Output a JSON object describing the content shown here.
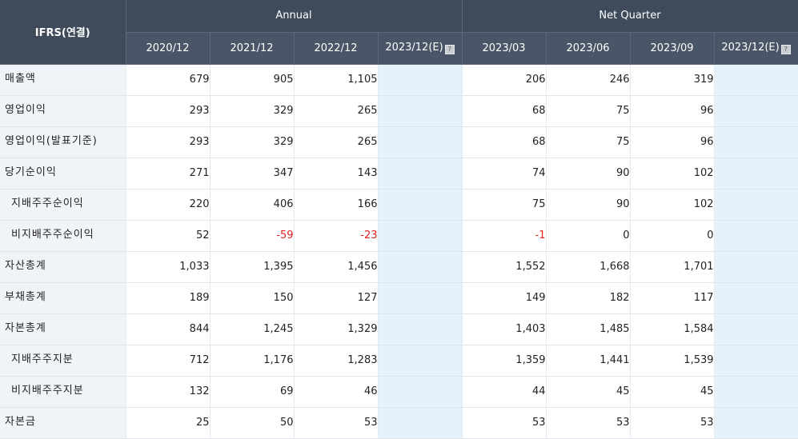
{
  "header": {
    "corner": "IFRS(연결)",
    "group_annual": "Annual",
    "group_quarter": "Net Quarter",
    "annual_periods": [
      "2020/12",
      "2021/12",
      "2022/12",
      "2023/12(E)"
    ],
    "quarter_periods": [
      "2023/03",
      "2023/06",
      "2023/09",
      "2023/12(E)"
    ],
    "estimate_icon": "info-icon"
  },
  "rows": [
    {
      "label": "매출액",
      "annual": [
        "679",
        "905",
        "1,105",
        ""
      ],
      "quarter": [
        "206",
        "246",
        "319",
        ""
      ]
    },
    {
      "label": "영업이익",
      "annual": [
        "293",
        "329",
        "265",
        ""
      ],
      "quarter": [
        "68",
        "75",
        "96",
        ""
      ]
    },
    {
      "label": "영업이익(발표기준)",
      "annual": [
        "293",
        "329",
        "265",
        ""
      ],
      "quarter": [
        "68",
        "75",
        "96",
        ""
      ]
    },
    {
      "label": "당기순이익",
      "annual": [
        "271",
        "347",
        "143",
        ""
      ],
      "quarter": [
        "74",
        "90",
        "102",
        ""
      ]
    },
    {
      "label": "지배주주순이익",
      "annual": [
        "220",
        "406",
        "166",
        ""
      ],
      "quarter": [
        "75",
        "90",
        "102",
        ""
      ]
    },
    {
      "label": "비지배주주순이익",
      "annual": [
        "52",
        "-59",
        "-23",
        ""
      ],
      "quarter": [
        "-1",
        "0",
        "0",
        ""
      ]
    },
    {
      "label": "자산총계",
      "annual": [
        "1,033",
        "1,395",
        "1,456",
        ""
      ],
      "quarter": [
        "1,552",
        "1,668",
        "1,701",
        ""
      ]
    },
    {
      "label": "부채총계",
      "annual": [
        "189",
        "150",
        "127",
        ""
      ],
      "quarter": [
        "149",
        "182",
        "117",
        ""
      ]
    },
    {
      "label": "자본총계",
      "annual": [
        "844",
        "1,245",
        "1,329",
        ""
      ],
      "quarter": [
        "1,403",
        "1,485",
        "1,584",
        ""
      ]
    },
    {
      "label": "지배주주지분",
      "annual": [
        "712",
        "1,176",
        "1,283",
        ""
      ],
      "quarter": [
        "1,359",
        "1,441",
        "1,539",
        ""
      ]
    },
    {
      "label": "비지배주주지분",
      "annual": [
        "132",
        "69",
        "46",
        ""
      ],
      "quarter": [
        "44",
        "45",
        "45",
        ""
      ]
    },
    {
      "label": "자본금",
      "annual": [
        "25",
        "50",
        "53",
        ""
      ],
      "quarter": [
        "53",
        "53",
        "53",
        ""
      ]
    }
  ],
  "colors": {
    "header_bg": "#3f4b5b",
    "label_bg": "#f0f4f9",
    "estimate_bg": "#e4f3fb",
    "negative": "#e02020"
  }
}
